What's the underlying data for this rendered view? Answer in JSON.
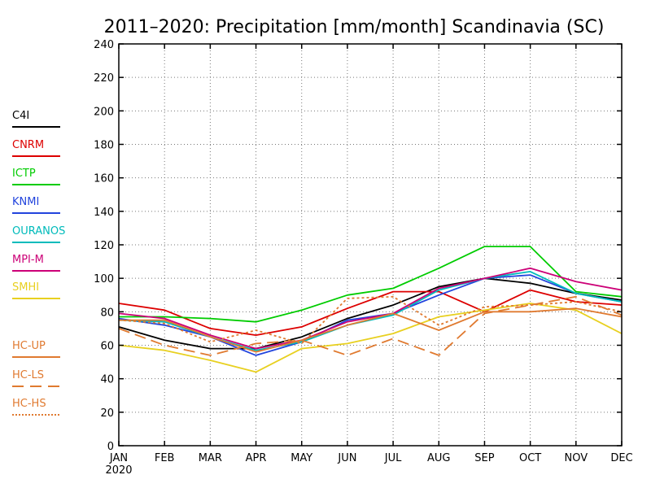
{
  "chart_data": {
    "type": "line",
    "title": "2011–2020: Precipitation [mm/month] Scandinavia (SC)",
    "xlabel": "",
    "ylabel": "",
    "categories": [
      "JAN",
      "FEB",
      "MAR",
      "APR",
      "MAY",
      "JUN",
      "JUL",
      "AUG",
      "SEP",
      "OCT",
      "NOV",
      "DEC"
    ],
    "year_label": "2020",
    "ylim": [
      0,
      240
    ],
    "yticks": [
      0,
      20,
      40,
      60,
      80,
      100,
      120,
      140,
      160,
      180,
      200,
      220,
      240
    ],
    "grid": true,
    "legend_position": "left",
    "series": [
      {
        "name": "C4I",
        "color": "#000000",
        "dash": "solid",
        "values": [
          71,
          63,
          58,
          58,
          65,
          76,
          84,
          95,
          100,
          97,
          91,
          87
        ]
      },
      {
        "name": "CNRM",
        "color": "#dd0000",
        "dash": "solid",
        "values": [
          85,
          81,
          70,
          66,
          71,
          82,
          92,
          92,
          80,
          93,
          86,
          84
        ]
      },
      {
        "name": "ICTP",
        "color": "#00cc00",
        "dash": "solid",
        "values": [
          77,
          77,
          76,
          74,
          81,
          90,
          94,
          106,
          119,
          119,
          92,
          89
        ]
      },
      {
        "name": "KNMI",
        "color": "#2244dd",
        "dash": "solid",
        "values": [
          76,
          72,
          65,
          54,
          62,
          75,
          79,
          90,
          100,
          102,
          91,
          86
        ]
      },
      {
        "name": "OURANOS",
        "color": "#00bbbb",
        "dash": "solid",
        "values": [
          75,
          74,
          65,
          57,
          62,
          72,
          78,
          93,
          100,
          104,
          91,
          86
        ]
      },
      {
        "name": "MPI-M",
        "color": "#cc0077",
        "dash": "solid",
        "values": [
          79,
          76,
          66,
          58,
          63,
          74,
          79,
          94,
          100,
          106,
          98,
          93
        ]
      },
      {
        "name": "SMHI",
        "color": "#e8d020",
        "dash": "solid",
        "values": [
          60,
          57,
          51,
          44,
          58,
          61,
          67,
          77,
          81,
          85,
          81,
          67
        ]
      },
      {
        "name": "HC-UP",
        "color": "#e07a30",
        "dash": "solid",
        "values": [
          75,
          75,
          65,
          56,
          63,
          72,
          79,
          69,
          80,
          80,
          82,
          77
        ]
      },
      {
        "name": "HC-LS",
        "color": "#e07a30",
        "dash": "long",
        "values": [
          70,
          60,
          54,
          61,
          63,
          54,
          64,
          54,
          79,
          84,
          89,
          78
        ]
      },
      {
        "name": "HC-HS",
        "color": "#e07a30",
        "dash": "short",
        "values": [
          75,
          73,
          62,
          69,
          61,
          88,
          89,
          72,
          83,
          84,
          86,
          80
        ]
      }
    ]
  }
}
